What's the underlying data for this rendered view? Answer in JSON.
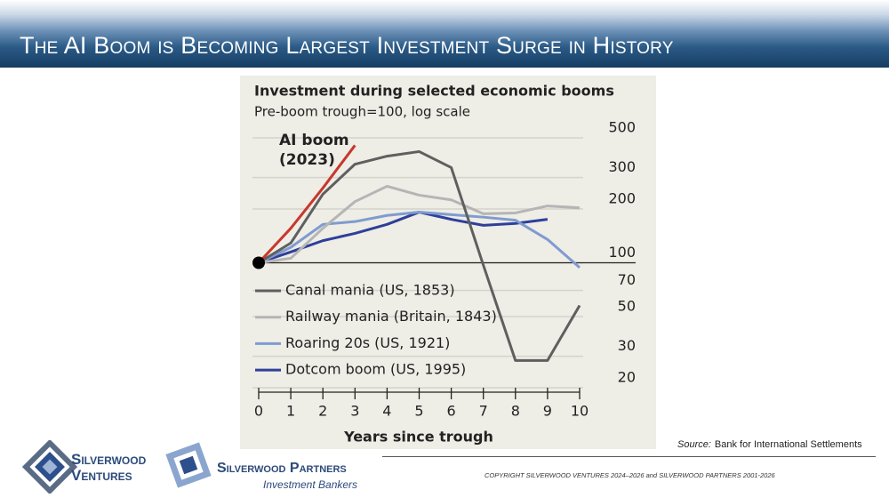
{
  "header": {
    "title": "The AI Boom is Becoming Largest Investment Surge in History"
  },
  "chart_data": {
    "type": "line",
    "title": "Investment during selected economic booms",
    "subtitle": "Pre-boom trough=100, log scale",
    "x_label": "Years since trough",
    "x": [
      0,
      1,
      2,
      3,
      4,
      5,
      6,
      7,
      8,
      9,
      10
    ],
    "xlim": [
      0,
      10
    ],
    "xticks": [
      0,
      1,
      2,
      3,
      4,
      5,
      6,
      7,
      8,
      9,
      10
    ],
    "ylim": [
      20,
      500
    ],
    "yticks": [
      20,
      30,
      50,
      70,
      100,
      200,
      300,
      500
    ],
    "log_scale": true,
    "grid": true,
    "legend_position": "lower left",
    "series": [
      {
        "name": "AI boom (2023)",
        "color": "#c8372d",
        "in_legend": false,
        "values": [
          100,
          156,
          262,
          454,
          null,
          null,
          null,
          null,
          null,
          null,
          null
        ]
      },
      {
        "name": "Canal mania (US, 1853)",
        "color": "#5f5f5f",
        "values": [
          100,
          129,
          242,
          356,
          395,
          419,
          341,
          97,
          28.4,
          28.4,
          57.7
        ]
      },
      {
        "name": "Railway mania (Britain, 1843)",
        "color": "#b5b5b5",
        "values": [
          100,
          106,
          156,
          220,
          268,
          239,
          225,
          188,
          190,
          208,
          203
        ]
      },
      {
        "name": "Roaring 20s (US, 1921)",
        "color": "#7f9bd0",
        "values": [
          100,
          122,
          164,
          170,
          184,
          192,
          186,
          180,
          173,
          135,
          94
        ]
      },
      {
        "name": "Dotcom boom (US, 1995)",
        "color": "#2e3f9a",
        "values": [
          100,
          115,
          133,
          146,
          164,
          192,
          175,
          162,
          166,
          175,
          null
        ]
      }
    ]
  },
  "source": {
    "label": "Source:",
    "text": "Bank for International Settlements"
  },
  "copyright": "COPYRIGHT SILVERWOOD VENTURES 2024–2026 and SILVERWOOD PARTNERS 2001-2026",
  "logos": [
    {
      "line1": "Silverwood",
      "line2": "Ventures"
    },
    {
      "line1": "Silverwood Partners",
      "line2": "Investment Bankers"
    }
  ]
}
